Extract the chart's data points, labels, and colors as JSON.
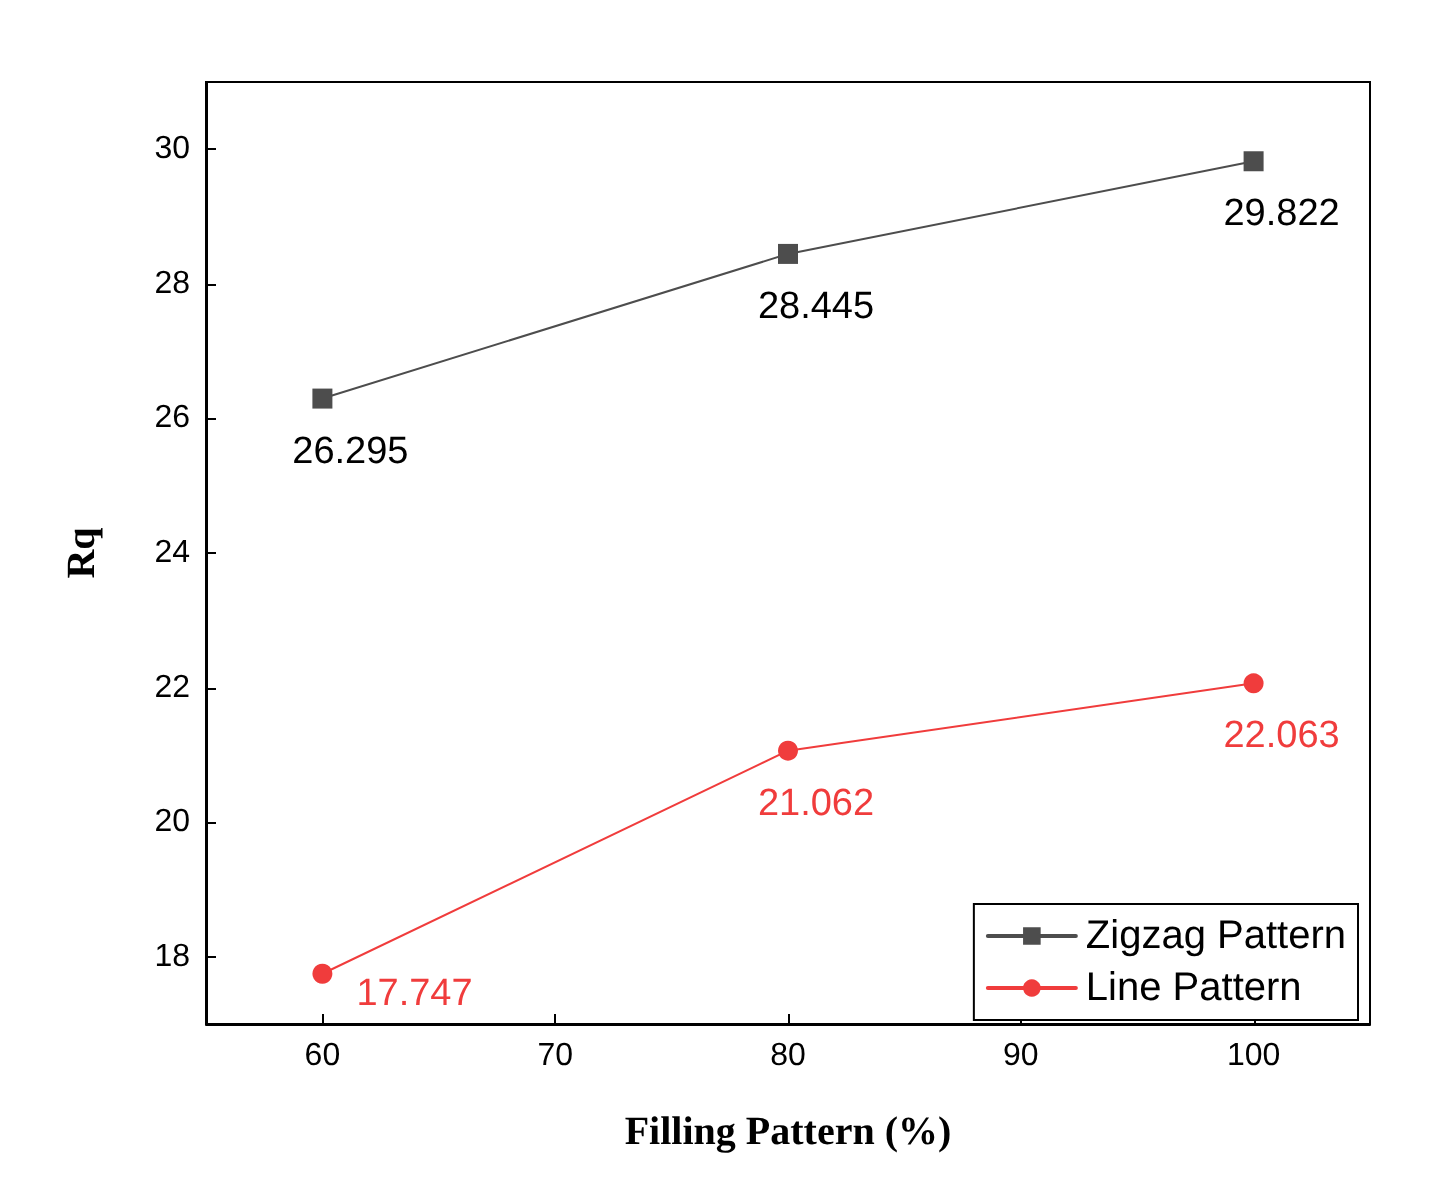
{
  "chart_data": {
    "type": "line",
    "xlabel": "Filling Pattern (%)",
    "ylabel": "Rq",
    "x": [
      60,
      80,
      100
    ],
    "series": [
      {
        "name": "Zigzag Pattern",
        "color": "#4d4d4d",
        "marker": "square",
        "values": [
          26.295,
          28.445,
          29.822
        ]
      },
      {
        "name": "Line Pattern",
        "color": "#f03c3c",
        "marker": "circle",
        "values": [
          17.747,
          21.062,
          22.063
        ]
      }
    ],
    "xlim": [
      55,
      105
    ],
    "xticks": [
      60,
      70,
      80,
      90,
      100
    ],
    "ylim": [
      17,
      31
    ],
    "yticks": [
      18,
      20,
      22,
      24,
      26,
      28,
      30
    ],
    "data_labels": true,
    "legend": "bottom right",
    "grid": false,
    "line_style": "solid"
  }
}
